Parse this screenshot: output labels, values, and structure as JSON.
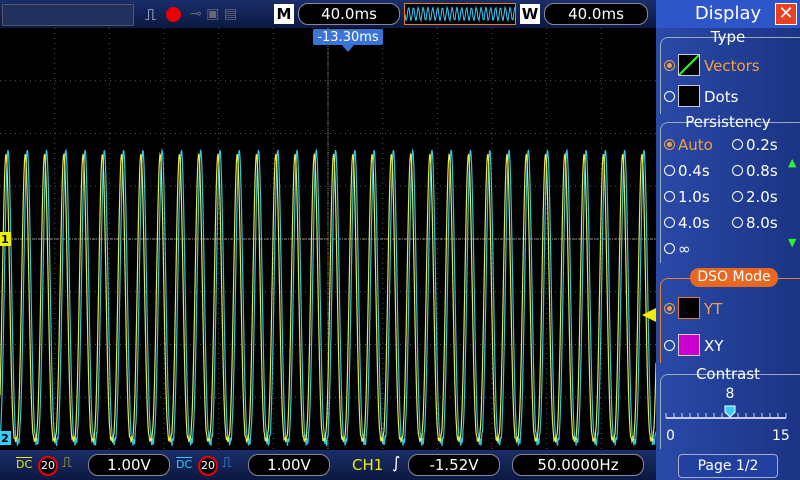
{
  "top_bar": {
    "timebase_label": "M",
    "timebase": "40.0ms",
    "window_label": "W",
    "window": "40.0ms"
  },
  "screen": {
    "trigger_position": "-13.30ms",
    "channel_markers": [
      "1",
      "2"
    ]
  },
  "panel": {
    "title": "Display",
    "type": {
      "title": "Type",
      "options": [
        "Vectors",
        "Dots"
      ]
    },
    "persistency": {
      "title": "Persistency",
      "options": [
        "Auto",
        "0.2s",
        "0.4s",
        "0.8s",
        "1.0s",
        "2.0s",
        "4.0s",
        "8.0s",
        "∞"
      ]
    },
    "dso_mode": {
      "title": "DSO Mode",
      "options": [
        "YT",
        "XY"
      ]
    },
    "contrast": {
      "title": "Contrast",
      "value": 8,
      "min": 0,
      "max": 15
    },
    "page": "Page 1/2"
  },
  "bottom_bar": {
    "ch1": {
      "coupling": "DC",
      "bw_limit": "20",
      "scale": "1.00V"
    },
    "ch2": {
      "coupling": "DC",
      "bw_limit": "20",
      "scale": "1.00V"
    },
    "trigger": {
      "source": "CH1",
      "level": "-1.52V"
    },
    "frequency": "50.0000Hz"
  }
}
